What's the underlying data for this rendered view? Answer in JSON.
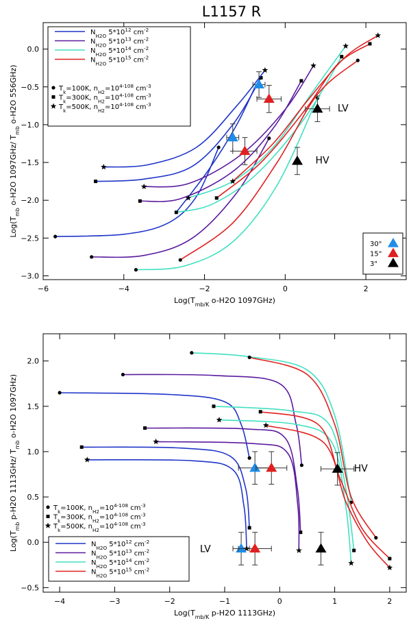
{
  "figure_title": "L1157 R",
  "chart_data": [
    {
      "type": "line",
      "panel": "top",
      "title": "L1157 R",
      "xlabel": "Log(T_mb/K o-H2O 1097GHz)",
      "ylabel": "Log(T_mb o-H2O 1097GHz/ T_mb o-H2O 556GHz)",
      "xlim": [
        -6,
        3
      ],
      "ylim": [
        -3.05,
        0.35
      ],
      "xticks": [
        -6,
        -4,
        -2,
        0,
        2
      ],
      "yticks": [
        -3.0,
        -2.5,
        -2.0,
        -1.5,
        -1.0,
        -0.5,
        0.0
      ],
      "grid": false,
      "legend": {
        "placement": "top-left",
        "lines": [
          {
            "label": "N_H2O 5*10^12 cm^-2",
            "color": "#1f35c8"
          },
          {
            "label": "N_H2O 5*10^13 cm^-2",
            "color": "#5a1a9e"
          },
          {
            "label": "N_H2O 5*10^14 cm^-2",
            "color": "#40e0c0"
          },
          {
            "label": "N_H2O 5*10^15 cm^-2",
            "color": "#e02020"
          }
        ],
        "markers": [
          {
            "marker": "circle",
            "label": "T_k=100K, n_H2=10^4-10^8 cm^-3"
          },
          {
            "marker": "square",
            "label": "T_k=300K, n_H2=10^4-10^8 cm^-3"
          },
          {
            "marker": "star",
            "label": "T_k=500K, n_H2=10^4-10^8 cm^-3"
          }
        ]
      },
      "obs_legend": {
        "placement": "bottom-right",
        "items": [
          {
            "label": "30\"",
            "color": "#1e8ce8"
          },
          {
            "label": "15\"",
            "color": "#e02020"
          },
          {
            "label": "3\"",
            "color": "#000000"
          }
        ]
      },
      "annotations": [
        {
          "text": "LV",
          "x": 1.3,
          "y": -0.78
        },
        {
          "text": "HV",
          "x": 0.75,
          "y": -1.47
        }
      ],
      "series": [
        {
          "color": "#1f35c8",
          "start_marker": "circle",
          "end_marker": "circle",
          "points": [
            [
              -5.7,
              -2.48
            ],
            [
              -4.0,
              -2.45
            ],
            [
              -2.9,
              -2.3
            ],
            [
              -2.2,
              -1.95
            ],
            [
              -1.65,
              -1.3
            ]
          ]
        },
        {
          "color": "#1f35c8",
          "start_marker": "square",
          "end_marker": "square",
          "points": [
            [
              -4.7,
              -1.75
            ],
            [
              -3.5,
              -1.72
            ],
            [
              -2.3,
              -1.55
            ],
            [
              -1.3,
              -1.0
            ],
            [
              -0.6,
              -0.38
            ]
          ]
        },
        {
          "color": "#1f35c8",
          "start_marker": "star",
          "end_marker": "star",
          "points": [
            [
              -4.5,
              -1.56
            ],
            [
              -3.4,
              -1.53
            ],
            [
              -2.2,
              -1.3
            ],
            [
              -1.2,
              -0.75
            ],
            [
              -0.5,
              -0.28
            ]
          ]
        },
        {
          "color": "#1f35c8",
          "start_marker": null,
          "end_marker": null,
          "points": [
            [
              -2.7,
              -2.16
            ],
            [
              -1.9,
              -1.6
            ],
            [
              -1.2,
              -1.0
            ],
            [
              -0.72,
              -0.47
            ]
          ]
        },
        {
          "color": "#5a1a9e",
          "start_marker": "circle",
          "end_marker": "circle",
          "points": [
            [
              -4.8,
              -2.75
            ],
            [
              -3.5,
              -2.73
            ],
            [
              -2.3,
              -2.5
            ],
            [
              -1.2,
              -1.9
            ],
            [
              -0.4,
              -1.18
            ]
          ]
        },
        {
          "color": "#5a1a9e",
          "start_marker": "square",
          "end_marker": "square",
          "points": [
            [
              -3.6,
              -2.01
            ],
            [
              -2.6,
              -1.98
            ],
            [
              -1.3,
              -1.62
            ],
            [
              -0.3,
              -1.05
            ],
            [
              0.4,
              -0.42
            ]
          ]
        },
        {
          "color": "#5a1a9e",
          "start_marker": "star",
          "end_marker": "star",
          "points": [
            [
              -3.5,
              -1.82
            ],
            [
              -2.4,
              -1.78
            ],
            [
              -1.1,
              -1.4
            ],
            [
              0.0,
              -0.8
            ],
            [
              0.7,
              -0.22
            ]
          ]
        },
        {
          "color": "#40e0c0",
          "start_marker": "circle",
          "end_marker": "circle",
          "points": [
            [
              -3.7,
              -2.92
            ],
            [
              -2.5,
              -2.87
            ],
            [
              -1.3,
              -2.55
            ],
            [
              -0.2,
              -1.8
            ],
            [
              0.8,
              -0.65
            ]
          ]
        },
        {
          "color": "#40e0c0",
          "start_marker": "square",
          "end_marker": "square",
          "points": [
            [
              -2.7,
              -2.16
            ],
            [
              -1.8,
              -2.05
            ],
            [
              -0.7,
              -1.65
            ],
            [
              0.5,
              -0.9
            ],
            [
              1.4,
              -0.1
            ]
          ]
        },
        {
          "color": "#40e0c0",
          "start_marker": "star",
          "end_marker": "star",
          "points": [
            [
              -2.4,
              -1.97
            ],
            [
              -1.3,
              -1.75
            ],
            [
              -0.3,
              -1.3
            ],
            [
              0.7,
              -0.55
            ],
            [
              1.5,
              0.04
            ]
          ]
        },
        {
          "color": "#e02020",
          "start_marker": "circle",
          "end_marker": "circle",
          "points": [
            [
              -2.6,
              -2.79
            ],
            [
              -1.3,
              -2.3
            ],
            [
              -0.2,
              -1.5
            ],
            [
              0.8,
              -0.6
            ],
            [
              1.8,
              -0.15
            ]
          ]
        },
        {
          "color": "#e02020",
          "start_marker": "square",
          "end_marker": "square",
          "points": [
            [
              -1.7,
              -1.97
            ],
            [
              -0.6,
              -1.5
            ],
            [
              0.5,
              -0.8
            ],
            [
              1.3,
              -0.2
            ],
            [
              2.1,
              0.07
            ]
          ]
        },
        {
          "color": "#e02020",
          "start_marker": "star",
          "end_marker": "star",
          "points": [
            [
              -1.3,
              -1.75
            ],
            [
              -0.3,
              -1.25
            ],
            [
              0.6,
              -0.65
            ],
            [
              1.5,
              -0.1
            ],
            [
              2.3,
              0.18
            ]
          ]
        }
      ],
      "observations": [
        {
          "label": "30\"",
          "color": "#1e8ce8",
          "x": -0.65,
          "y": -0.47,
          "xerr": 0.15,
          "yerr": 0.17
        },
        {
          "label": "30\"",
          "color": "#1e8ce8",
          "x": -1.3,
          "y": -1.17,
          "xerr": 0.15,
          "yerr": 0.18
        },
        {
          "label": "15\"",
          "color": "#e02020",
          "x": -0.4,
          "y": -0.66,
          "xerr": 0.3,
          "yerr": 0.18
        },
        {
          "label": "15\"",
          "color": "#e02020",
          "x": -1.0,
          "y": -1.35,
          "xerr": 0.3,
          "yerr": 0.18
        },
        {
          "label": "3\"",
          "color": "#000000",
          "x": 0.8,
          "y": -0.79,
          "xerr": 0.3,
          "yerr": 0.17
        },
        {
          "label": "3\"",
          "color": "#000000",
          "x": 0.3,
          "y": -1.48,
          "xerr": 0.0,
          "yerr": 0.18
        }
      ]
    },
    {
      "type": "line",
      "panel": "bottom",
      "title": "",
      "xlabel": "Log(T_mb/K p-H2O 1113GHz)",
      "ylabel": "Log(T_mb p-H2O 1113GHz/ T_mb o-H2O 1097GHz)",
      "xlim": [
        -4.3,
        2.3
      ],
      "ylim": [
        -0.55,
        2.3
      ],
      "xticks": [
        -4,
        -3,
        -2,
        -1,
        0,
        1,
        2
      ],
      "yticks": [
        -0.5,
        0.0,
        0.5,
        1.0,
        1.5,
        2.0
      ],
      "grid": false,
      "legend": {
        "placement": "bottom-left",
        "lines": [
          {
            "label": "N_H2O 5*10^12 cm^-2",
            "color": "#1f35c8"
          },
          {
            "label": "N_H2O 5*10^13 cm^-2",
            "color": "#5a1a9e"
          },
          {
            "label": "N_H2O 5*10^14 cm^-2",
            "color": "#40e0c0"
          },
          {
            "label": "N_H2O 5*10^15 cm^-2",
            "color": "#e02020"
          }
        ],
        "markers": [
          {
            "marker": "circle",
            "label": "T_k=100K, n_H2=10^4-10^8 cm^-3"
          },
          {
            "marker": "square",
            "label": "T_k=300K, n_H2=10^4-10^8 cm^-3"
          },
          {
            "marker": "star",
            "label": "T_k=500K, n_H2=10^4-10^8 cm^-3"
          }
        ]
      },
      "annotations": [
        {
          "text": "HV",
          "x": 1.35,
          "y": 0.82
        },
        {
          "text": "LV",
          "x": -1.45,
          "y": -0.07
        }
      ],
      "series": [
        {
          "color": "#1f35c8",
          "start_marker": "circle",
          "end_marker": "circle",
          "points": [
            [
              -4.0,
              1.65
            ],
            [
              -2.0,
              1.63
            ],
            [
              -1.0,
              1.55
            ],
            [
              -0.7,
              1.3
            ],
            [
              -0.55,
              0.93
            ]
          ]
        },
        {
          "color": "#1f35c8",
          "start_marker": "square",
          "end_marker": "square",
          "points": [
            [
              -3.6,
              1.05
            ],
            [
              -1.8,
              1.04
            ],
            [
              -0.9,
              0.95
            ],
            [
              -0.62,
              0.6
            ],
            [
              -0.55,
              0.16
            ]
          ]
        },
        {
          "color": "#1f35c8",
          "start_marker": "star",
          "end_marker": "star",
          "points": [
            [
              -3.5,
              0.91
            ],
            [
              -1.6,
              0.9
            ],
            [
              -0.85,
              0.8
            ],
            [
              -0.65,
              0.4
            ],
            [
              -0.6,
              -0.07
            ]
          ]
        },
        {
          "color": "#5a1a9e",
          "start_marker": "circle",
          "end_marker": "circle",
          "points": [
            [
              -2.85,
              1.85
            ],
            [
              -1.2,
              1.84
            ],
            [
              0.0,
              1.75
            ],
            [
              0.3,
              1.3
            ],
            [
              0.4,
              0.85
            ]
          ]
        },
        {
          "color": "#5a1a9e",
          "start_marker": "square",
          "end_marker": "square",
          "points": [
            [
              -2.45,
              1.26
            ],
            [
              -0.6,
              1.25
            ],
            [
              0.1,
              1.15
            ],
            [
              0.32,
              0.6
            ],
            [
              0.38,
              0.11
            ]
          ]
        },
        {
          "color": "#5a1a9e",
          "start_marker": "star",
          "end_marker": "star",
          "points": [
            [
              -2.25,
              1.11
            ],
            [
              -0.5,
              1.09
            ],
            [
              0.15,
              0.98
            ],
            [
              0.33,
              0.4
            ],
            [
              0.35,
              -0.09
            ]
          ]
        },
        {
          "color": "#40e0c0",
          "start_marker": "circle",
          "end_marker": "circle",
          "points": [
            [
              -1.6,
              2.09
            ],
            [
              -0.6,
              2.05
            ],
            [
              0.5,
              1.9
            ],
            [
              1.0,
              1.4
            ],
            [
              1.3,
              0.44
            ]
          ]
        },
        {
          "color": "#40e0c0",
          "start_marker": "square",
          "end_marker": "square",
          "points": [
            [
              -1.2,
              1.5
            ],
            [
              0.2,
              1.45
            ],
            [
              0.9,
              1.3
            ],
            [
              1.2,
              0.6
            ],
            [
              1.35,
              -0.09
            ]
          ]
        },
        {
          "color": "#40e0c0",
          "start_marker": "star",
          "end_marker": "star",
          "points": [
            [
              -1.1,
              1.35
            ],
            [
              0.3,
              1.3
            ],
            [
              0.95,
              1.1
            ],
            [
              1.2,
              0.4
            ],
            [
              1.3,
              -0.23
            ]
          ]
        },
        {
          "color": "#e02020",
          "start_marker": "circle",
          "end_marker": "circle",
          "points": [
            [
              -0.55,
              2.04
            ],
            [
              0.5,
              1.85
            ],
            [
              1.0,
              1.3
            ],
            [
              1.3,
              0.5
            ],
            [
              1.75,
              0.05
            ]
          ]
        },
        {
          "color": "#e02020",
          "start_marker": "square",
          "end_marker": "square",
          "points": [
            [
              -0.35,
              1.44
            ],
            [
              0.7,
              1.3
            ],
            [
              1.1,
              0.7
            ],
            [
              1.5,
              0.15
            ],
            [
              2.0,
              -0.18
            ]
          ]
        },
        {
          "color": "#e02020",
          "start_marker": "star",
          "end_marker": "star",
          "points": [
            [
              -0.25,
              1.29
            ],
            [
              0.8,
              1.1
            ],
            [
              1.2,
              0.45
            ],
            [
              1.6,
              0.0
            ],
            [
              2.0,
              -0.28
            ]
          ]
        }
      ],
      "observations": [
        {
          "label": "30\"",
          "color": "#1e8ce8",
          "x": -0.45,
          "y": 0.82,
          "xerr": 0.3,
          "yerr": 0.18
        },
        {
          "label": "30\"",
          "color": "#1e8ce8",
          "x": -0.7,
          "y": -0.07,
          "xerr": 0.15,
          "yerr": 0.18
        },
        {
          "label": "15\"",
          "color": "#e02020",
          "x": -0.15,
          "y": 0.82,
          "xerr": 0.28,
          "yerr": 0.18
        },
        {
          "label": "15\"",
          "color": "#e02020",
          "x": -0.45,
          "y": -0.07,
          "xerr": 0.3,
          "yerr": 0.18
        },
        {
          "label": "3\"",
          "color": "#000000",
          "x": 1.05,
          "y": 0.81,
          "xerr": 0.3,
          "yerr": 0.18
        },
        {
          "label": "3\"",
          "color": "#000000",
          "x": 0.75,
          "y": -0.07,
          "xerr": 0.0,
          "yerr": 0.18
        }
      ]
    }
  ]
}
